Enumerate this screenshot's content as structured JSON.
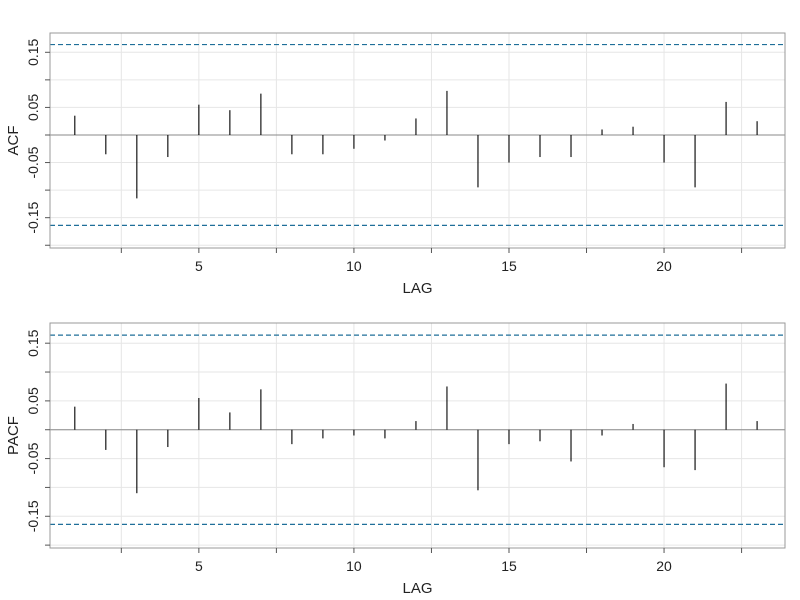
{
  "charts": [
    {
      "id": "acf",
      "ylabel": "ACF",
      "xlabel": "LAG",
      "xticks": [
        5,
        10,
        15,
        20
      ],
      "yticks": [
        0.15,
        0.05,
        -0.05,
        -0.15
      ],
      "ytick_labels": [
        "0.15",
        "0.05",
        "-0.05",
        "-0.15"
      ]
    },
    {
      "id": "pacf",
      "ylabel": "PACF",
      "xlabel": "LAG",
      "xticks": [
        5,
        10,
        15,
        20
      ],
      "yticks": [
        0.15,
        0.05,
        -0.05,
        -0.15
      ],
      "ytick_labels": [
        "0.15",
        "0.05",
        "-0.05",
        "-0.15"
      ]
    }
  ],
  "chart_data": [
    {
      "type": "bar",
      "ylabel": "ACF",
      "xlabel": "LAG",
      "x": [
        1,
        2,
        3,
        4,
        5,
        6,
        7,
        8,
        9,
        10,
        11,
        12,
        13,
        14,
        15,
        16,
        17,
        18,
        19,
        20,
        21,
        22,
        23
      ],
      "values": [
        0.035,
        -0.035,
        -0.115,
        -0.04,
        0.055,
        0.045,
        0.075,
        -0.035,
        -0.035,
        -0.025,
        -0.01,
        0.03,
        0.08,
        -0.095,
        -0.05,
        -0.04,
        -0.04,
        0.01,
        0.015,
        -0.05,
        -0.095,
        0.06,
        0.025
      ],
      "conf_band": 0.164,
      "xlim": [
        0.2,
        23.9
      ],
      "ylim": [
        -0.205,
        0.185
      ],
      "grid": true
    },
    {
      "type": "bar",
      "ylabel": "PACF",
      "xlabel": "LAG",
      "x": [
        1,
        2,
        3,
        4,
        5,
        6,
        7,
        8,
        9,
        10,
        11,
        12,
        13,
        14,
        15,
        16,
        17,
        18,
        19,
        20,
        21,
        22,
        23
      ],
      "values": [
        0.04,
        -0.035,
        -0.11,
        -0.03,
        0.055,
        0.03,
        0.07,
        -0.025,
        -0.015,
        -0.01,
        -0.015,
        0.015,
        0.075,
        -0.105,
        -0.025,
        -0.02,
        -0.055,
        -0.01,
        0.01,
        -0.065,
        -0.07,
        0.08,
        0.015
      ],
      "conf_band": 0.164,
      "xlim": [
        0.2,
        23.9
      ],
      "ylim": [
        -0.205,
        0.185
      ],
      "grid": true
    }
  ],
  "colors": {
    "bars": "#000000",
    "band": "#1f6f99",
    "grid": "#e6e6e6",
    "frame": "#999999",
    "text": "#222222"
  }
}
